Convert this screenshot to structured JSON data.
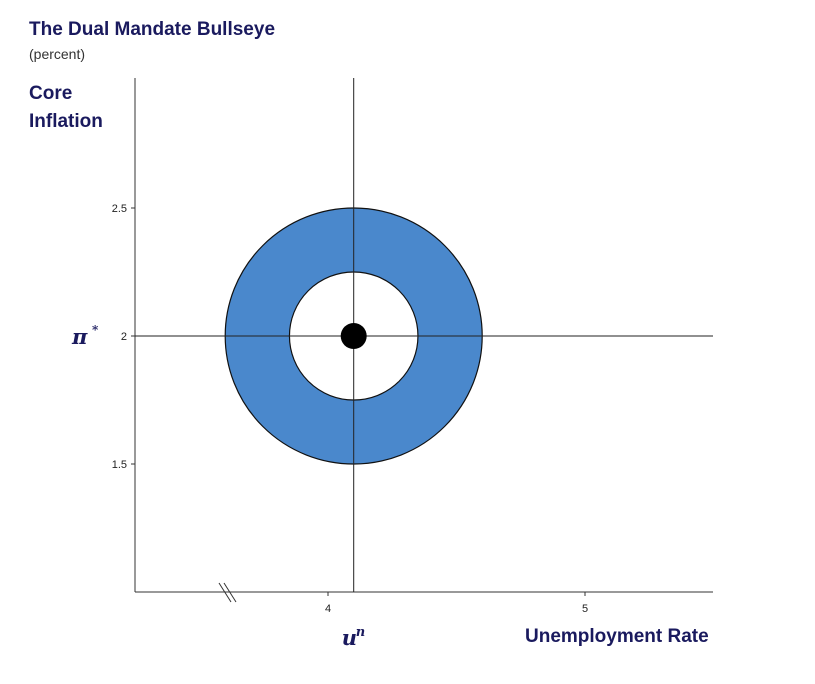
{
  "chart_data": {
    "type": "scatter",
    "title": "The Dual Mandate Bullseye",
    "subtitle": "(percent)",
    "ylabel": "Core Inflation",
    "xlabel": "Unemployment Rate",
    "xlim": [
      3.25,
      5.5
    ],
    "ylim": [
      1,
      2.95
    ],
    "xticks": [
      {
        "value": 4,
        "label": "4"
      },
      {
        "value": 5,
        "label": "5"
      }
    ],
    "yticks": [
      {
        "value": 1.5,
        "label": "1.5"
      },
      {
        "value": 2,
        "label": "2"
      },
      {
        "value": 2.5,
        "label": "2.5"
      }
    ],
    "x_axis_break": true,
    "target": {
      "x": 4.1,
      "y": 2.0,
      "x_label": "u",
      "x_label_sup": "n",
      "y_label": "π",
      "y_label_sup": "*"
    },
    "rings": [
      {
        "x_radius": 0.5,
        "y_radius": 0.5,
        "fill": "#4a88cc"
      },
      {
        "x_radius": 0.25,
        "y_radius": 0.25,
        "fill": "#ffffff"
      }
    ],
    "center_dot": {
      "x": 4.1,
      "y": 2.0,
      "color": "#000000"
    },
    "grid": false
  }
}
